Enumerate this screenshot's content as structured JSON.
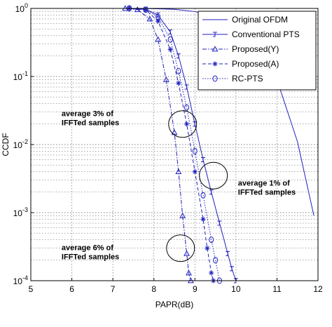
{
  "chart_data": {
    "type": "line",
    "title": "",
    "xlabel": "PAPR(dB)",
    "ylabel": "CCDF",
    "xlim": [
      5,
      12
    ],
    "ylim": [
      0.0001,
      1
    ],
    "yscale": "log",
    "grid": true,
    "legend_position": "top-right",
    "x_ticks": [
      "5",
      "6",
      "7",
      "8",
      "9",
      "10",
      "11",
      "12"
    ],
    "y_ticks": [
      {
        "base": "10",
        "exp": "0"
      },
      {
        "base": "10",
        "exp": "-1"
      },
      {
        "base": "10",
        "exp": "-2"
      },
      {
        "base": "10",
        "exp": "-3"
      },
      {
        "base": "10",
        "exp": "-4"
      }
    ],
    "series": [
      {
        "name": "Original OFDM",
        "marker": "none",
        "dash": "solid",
        "x": [
          5,
          7.5,
          8.0,
          8.5,
          9.0,
          9.5,
          10.0,
          10.5,
          11.0,
          11.5,
          11.9
        ],
        "y": [
          1,
          1,
          0.99,
          0.97,
          0.9,
          0.75,
          0.55,
          0.3,
          0.09,
          0.011,
          0.0009
        ]
      },
      {
        "name": "Conventional PTS",
        "marker": "J",
        "dash": "solid",
        "x": [
          5,
          7.4,
          7.8,
          8.1,
          8.4,
          8.6,
          8.8,
          9.0,
          9.2,
          9.4,
          9.6,
          9.8,
          9.9,
          10.0
        ],
        "y": [
          1,
          1,
          0.97,
          0.8,
          0.45,
          0.2,
          0.07,
          0.02,
          0.006,
          0.002,
          0.0007,
          0.00025,
          0.00015,
          0.0001
        ]
      },
      {
        "name": "Proposed(Y)",
        "marker": "triangle",
        "dash": "dashdot",
        "x": [
          5,
          7.3,
          7.6,
          7.9,
          8.1,
          8.3,
          8.5,
          8.6,
          8.7,
          8.8,
          8.85,
          8.9
        ],
        "y": [
          1,
          1,
          0.96,
          0.7,
          0.35,
          0.09,
          0.015,
          0.004,
          0.0009,
          0.00025,
          0.00013,
          0.0001
        ]
      },
      {
        "name": "Proposed(A)",
        "marker": "star",
        "dash": "dashed",
        "x": [
          5,
          7.4,
          7.8,
          8.1,
          8.4,
          8.6,
          8.8,
          9.0,
          9.2,
          9.3,
          9.4,
          9.45
        ],
        "y": [
          1,
          1,
          0.95,
          0.65,
          0.25,
          0.08,
          0.02,
          0.004,
          0.0008,
          0.0003,
          0.00013,
          0.0001
        ]
      },
      {
        "name": "RC-PTS",
        "marker": "circle",
        "dash": "dotted",
        "x": [
          5,
          7.4,
          7.8,
          8.1,
          8.4,
          8.6,
          8.8,
          9.0,
          9.2,
          9.4,
          9.5,
          9.6
        ],
        "y": [
          1,
          1,
          0.96,
          0.75,
          0.35,
          0.12,
          0.035,
          0.008,
          0.0018,
          0.0004,
          0.0002,
          0.0001
        ]
      }
    ],
    "annotations": [
      {
        "lines": [
          "average 3% of",
          "IFFTed samples"
        ],
        "x": 5.75,
        "y": 0.026
      },
      {
        "lines": [
          "average 1% of",
          "IFFTed samples"
        ],
        "x": 10.05,
        "y": 0.0025
      },
      {
        "lines": [
          "average 6% of",
          "IFFTed samples"
        ],
        "x": 5.75,
        "y": 0.00028
      }
    ],
    "ellipses": [
      {
        "cx": 8.7,
        "cy": 0.02
      },
      {
        "cx": 9.45,
        "cy": 0.0035
      },
      {
        "cx": 8.65,
        "cy": 0.0003
      }
    ]
  }
}
